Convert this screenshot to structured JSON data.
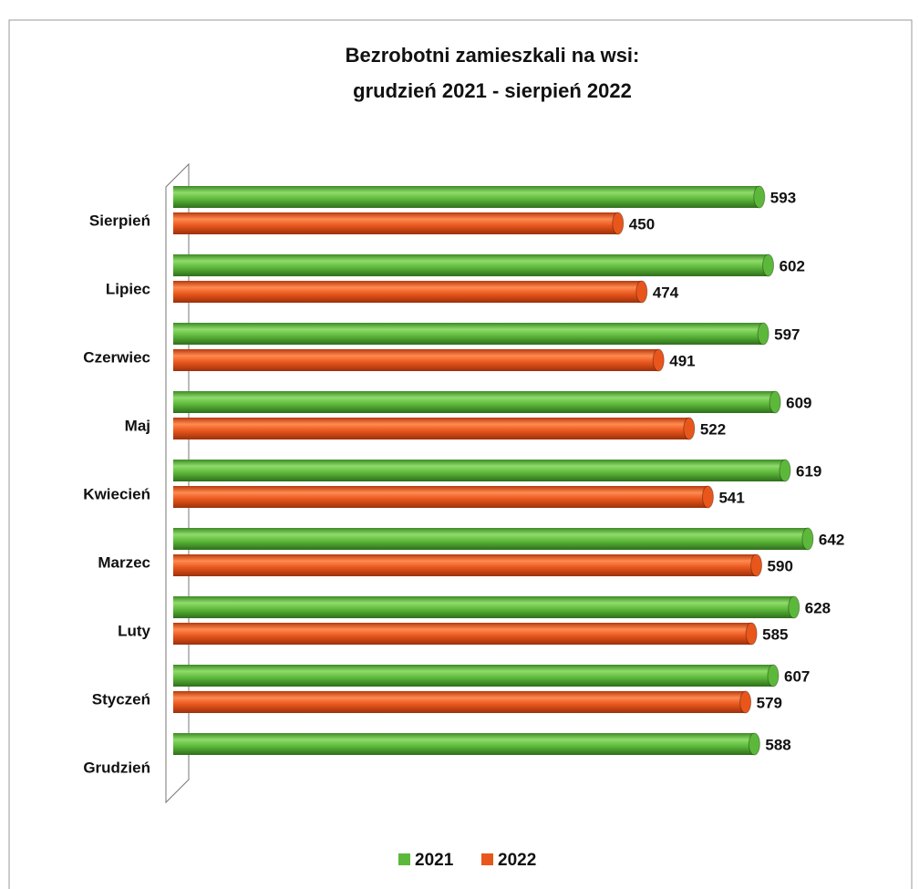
{
  "chart_data": {
    "type": "bar",
    "orientation": "horizontal",
    "title": "Bezrobotni zamieszkali na wsi:",
    "subtitle": "grudzień 2021 - sierpień 2022",
    "categories": [
      "Sierpień",
      "Lipiec",
      "Czerwiec",
      "Maj",
      "Kwiecień",
      "Marzec",
      "Luty",
      "Styczeń",
      "Grudzień"
    ],
    "series": [
      {
        "name": "2021",
        "color": "#5cb83a",
        "values": [
          593,
          602,
          597,
          609,
          619,
          642,
          628,
          607,
          588
        ]
      },
      {
        "name": "2022",
        "color": "#e8561c",
        "values": [
          450,
          474,
          491,
          522,
          541,
          590,
          585,
          579,
          null
        ]
      }
    ],
    "legend": "bottom"
  }
}
